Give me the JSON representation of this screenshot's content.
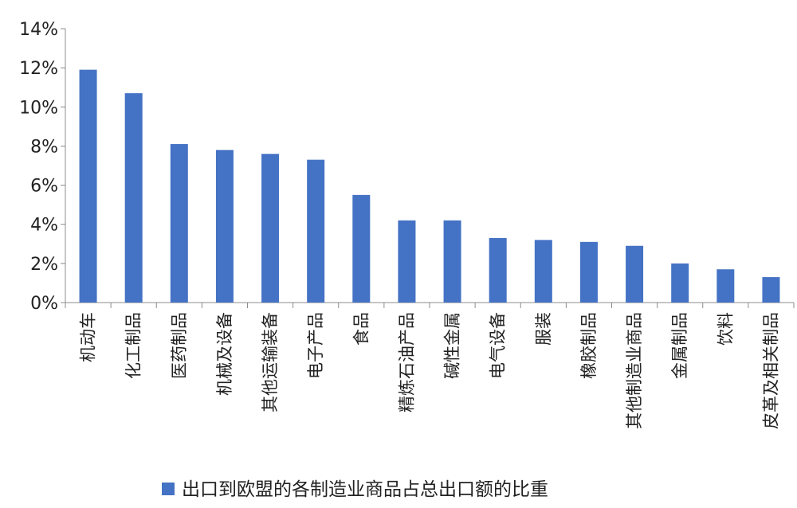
{
  "chart_data": {
    "type": "bar",
    "categories": [
      "机动车",
      "化工制品",
      "医药制品",
      "机械及设备",
      "其他运输装备",
      "电子产品",
      "食品",
      "精炼石油产品",
      "碱性金属",
      "电气设备",
      "服装",
      "橡胶制品",
      "其他制造业商品",
      "金属制品",
      "饮料",
      "皮革及相关制品"
    ],
    "series": [
      {
        "name": "出口到欧盟的各制造业商品占总出口额的比重",
        "values": [
          11.9,
          10.7,
          8.1,
          7.8,
          7.6,
          7.3,
          5.5,
          4.2,
          4.2,
          3.3,
          3.2,
          3.1,
          2.9,
          2.0,
          1.7,
          1.3
        ]
      }
    ],
    "ylim": [
      0,
      14
    ],
    "yticks": [
      "0%",
      "2%",
      "4%",
      "6%",
      "8%",
      "10%",
      "12%",
      "14%"
    ],
    "ytick_values": [
      0,
      2,
      4,
      6,
      8,
      10,
      12,
      14
    ],
    "grid": false,
    "legend_position": "bottom",
    "bar_color": "#4472C4"
  }
}
